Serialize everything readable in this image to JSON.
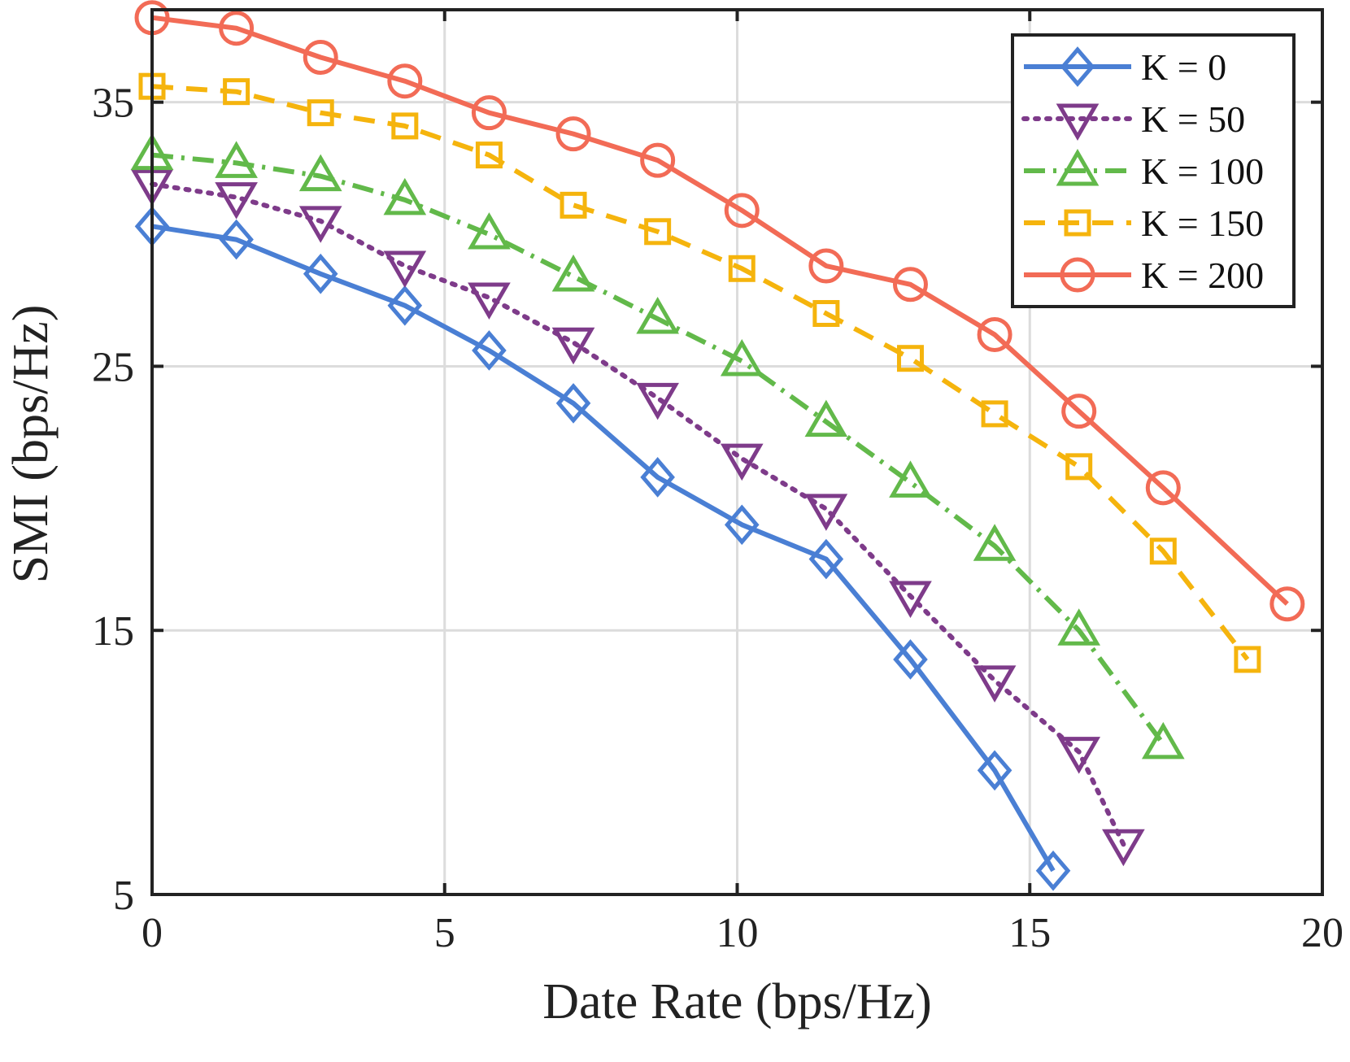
{
  "chart_data": {
    "type": "line",
    "title": "",
    "xlabel": "Date Rate (bps/Hz)",
    "ylabel": "SMI (bps/Hz)",
    "xlim": [
      0,
      20
    ],
    "ylim": [
      5,
      38.5
    ],
    "xticks": [
      0,
      5,
      10,
      15,
      20
    ],
    "yticks": [
      5,
      15,
      25,
      35
    ],
    "grid": true,
    "legend_position": "top-right",
    "series": [
      {
        "name": "K = 0",
        "color": "#4a7fd4",
        "line_style": "solid",
        "marker": "diamond",
        "x": [
          0,
          1.44,
          2.88,
          4.32,
          5.76,
          7.2,
          8.64,
          10.08,
          11.52,
          12.96,
          14.4,
          15.4
        ],
        "y": [
          30.3,
          29.8,
          28.5,
          27.3,
          25.6,
          23.6,
          20.8,
          19.0,
          17.7,
          13.9,
          9.7,
          5.9
        ]
      },
      {
        "name": "K = 50",
        "color": "#7e3b8a",
        "line_style": "dotted",
        "marker": "triangle-down",
        "x": [
          0,
          1.44,
          2.88,
          4.32,
          5.76,
          7.2,
          8.64,
          10.08,
          11.52,
          12.96,
          14.4,
          15.84,
          16.6
        ],
        "y": [
          31.9,
          31.4,
          30.5,
          28.8,
          27.6,
          25.9,
          23.8,
          21.5,
          19.6,
          16.3,
          13.1,
          10.4,
          6.9
        ]
      },
      {
        "name": "K = 100",
        "color": "#62b94a",
        "line_style": "dashdot",
        "marker": "triangle-up",
        "x": [
          0,
          1.44,
          2.88,
          4.32,
          5.76,
          7.2,
          8.64,
          10.08,
          11.52,
          12.96,
          14.4,
          15.84,
          17.28
        ],
        "y": [
          33.0,
          32.7,
          32.2,
          31.3,
          30.0,
          28.4,
          26.8,
          25.2,
          22.9,
          20.6,
          18.2,
          15.0,
          10.7
        ]
      },
      {
        "name": "K = 150",
        "color": "#f5b40d",
        "line_style": "dashed",
        "marker": "square",
        "x": [
          0,
          1.44,
          2.88,
          4.32,
          5.76,
          7.2,
          8.64,
          10.08,
          11.52,
          12.96,
          14.4,
          15.84,
          17.28,
          18.72
        ],
        "y": [
          35.6,
          35.4,
          34.6,
          34.1,
          33.0,
          31.1,
          30.1,
          28.7,
          27.0,
          25.3,
          23.2,
          21.2,
          18.0,
          13.9
        ]
      },
      {
        "name": "K = 200",
        "color": "#f26b56",
        "line_style": "solid",
        "marker": "circle",
        "x": [
          0,
          1.44,
          2.88,
          4.32,
          5.76,
          7.2,
          8.64,
          10.08,
          11.52,
          12.96,
          14.4,
          15.84,
          17.28,
          19.4
        ],
        "y": [
          38.2,
          37.8,
          36.7,
          35.8,
          34.6,
          33.8,
          32.8,
          30.9,
          28.8,
          28.1,
          26.2,
          23.3,
          20.4,
          16.0
        ]
      }
    ]
  }
}
